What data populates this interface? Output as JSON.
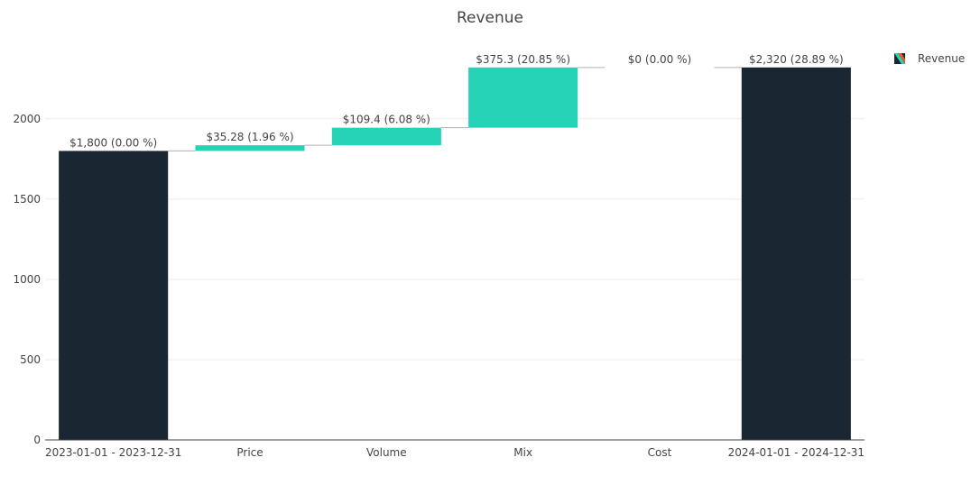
{
  "chart_data": {
    "type": "waterfall",
    "title": "Revenue",
    "categories": [
      "2023-01-01 - 2023-12-31",
      "Price",
      "Volume",
      "Mix",
      "Cost",
      "2024-01-01 - 2024-12-31"
    ],
    "measures": [
      "absolute",
      "relative",
      "relative",
      "relative",
      "relative",
      "total"
    ],
    "values": [
      1800,
      35.28,
      109.4,
      375.3,
      0,
      2320
    ],
    "data_labels": [
      "$1,800 (0.00 %)",
      "$35.28 (1.96 %)",
      "$109.4 (6.08 %)",
      "$375.3 (20.85 %)",
      "$0 (0.00 %)",
      "$2,320 (28.89 %)"
    ],
    "ylim": [
      0,
      2420
    ],
    "yticks": [
      0,
      500,
      1000,
      1500,
      2000
    ],
    "ytick_labels": [
      "0",
      "500",
      "1000",
      "1500",
      "2000"
    ],
    "grid": true,
    "legend": {
      "position": "top-right",
      "entries": [
        "Revenue"
      ]
    },
    "colors": {
      "total": "#1a2632",
      "increase": "#26d3b6",
      "connector": "#b0b0b0",
      "grid": "#ebebeb",
      "axis": "#444444"
    }
  }
}
